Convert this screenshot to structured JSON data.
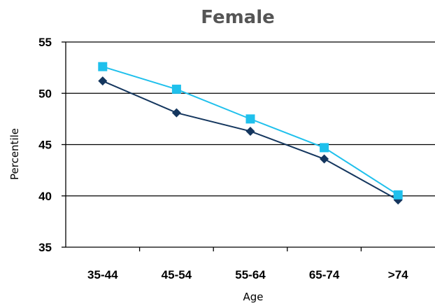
{
  "chart_data": {
    "type": "line",
    "title": "Female",
    "xlabel": "Age",
    "ylabel": "Percentile",
    "categories": [
      "35-44",
      "45-54",
      "55-64",
      "65-74",
      ">74"
    ],
    "ylim": [
      35,
      55
    ],
    "yticks": [
      35,
      40,
      45,
      50,
      55
    ],
    "grid": true,
    "legend": "none",
    "series": [
      {
        "values": [
          52.6,
          50.4,
          47.5,
          44.7,
          40.1
        ],
        "color": "#1fc0ec",
        "marker": "square"
      },
      {
        "values": [
          51.2,
          48.1,
          46.3,
          43.6,
          39.6
        ],
        "color": "#14365e",
        "marker": "diamond"
      }
    ]
  }
}
